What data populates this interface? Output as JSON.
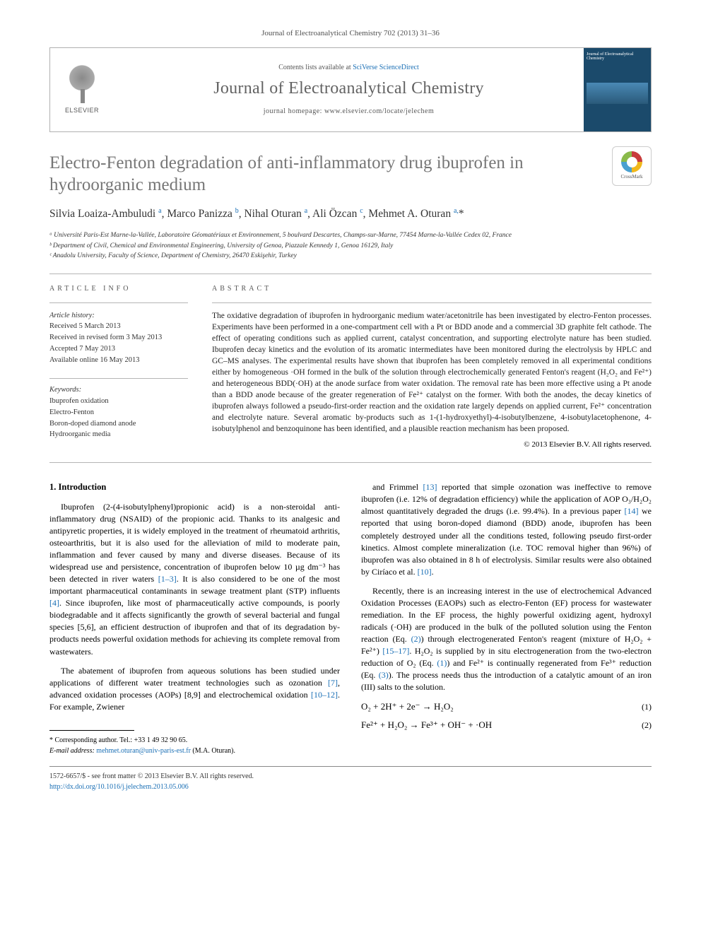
{
  "colors": {
    "link": "#1a6fb5",
    "title_gray": "#767676",
    "body": "#000000",
    "rule": "#b5b5b5",
    "cover_bg": "#1b4a6b"
  },
  "typography": {
    "body_family": "Georgia, 'Times New Roman', serif",
    "title_pt": 25,
    "journal_pt": 24,
    "abstract_pt": 11.5,
    "body_pt": 12
  },
  "header": {
    "journal_ref": "Journal of Electroanalytical Chemistry 702 (2013) 31–36",
    "contents_prefix": "Contents lists available at ",
    "contents_link": "SciVerse ScienceDirect",
    "journal_title": "Journal of Electroanalytical Chemistry",
    "homepage": "journal homepage: www.elsevier.com/locate/jelechem",
    "publisher": "ELSEVIER",
    "cover_small": "Journal of Electroanalytical Chemistry",
    "crossmark": "CrossMark"
  },
  "article": {
    "title": "Electro-Fenton degradation of anti-inflammatory drug ibuprofen in hydroorganic medium",
    "authors_html": "Silvia Loaiza-Ambuludi <sup class='sup-link'>a</sup>, Marco Panizza <sup class='sup-link'>b</sup>, Nihal Oturan <sup class='sup-link'>a</sup>, Ali Özcan <sup class='sup-link'>c</sup>, Mehmet A. Oturan <sup class='sup-link'>a,</sup>*",
    "affiliations": [
      "ᵃ Université Paris-Est Marne-la-Vallée, Laboratoire Géomatériaux et Environnement, 5 boulvard Descartes, Champs-sur-Marne, 77454 Marne-la-Vallée Cedex 02, France",
      "ᵇ Department of Civil, Chemical and Environmental Engineering, University of Genoa, Piazzale Kennedy 1, Genoa 16129, Italy",
      "ᶜ Anadolu University, Faculty of Science, Department of Chemistry, 26470 Eskişehir, Turkey"
    ]
  },
  "info": {
    "head": "ARTICLE INFO",
    "history_label": "Article history:",
    "history": [
      "Received 5 March 2013",
      "Received in revised form 3 May 2013",
      "Accepted 7 May 2013",
      "Available online 16 May 2013"
    ],
    "keywords_label": "Keywords:",
    "keywords": [
      "Ibuprofen oxidation",
      "Electro-Fenton",
      "Boron-doped diamond anode",
      "Hydroorganic media"
    ]
  },
  "abstract": {
    "head": "ABSTRACT",
    "text": "The oxidative degradation of ibuprofen in hydroorganic medium water/acetonitrile has been investigated by electro-Fenton processes. Experiments have been performed in a one-compartment cell with a Pt or BDD anode and a commercial 3D graphite felt cathode. The effect of operating conditions such as applied current, catalyst concentration, and supporting electrolyte nature has been studied. Ibuprofen decay kinetics and the evolution of its aromatic intermediates have been monitored during the electrolysis by HPLC and GC–MS analyses. The experimental results have shown that ibuprofen has been completely removed in all experimental conditions either by homogeneous ·OH formed in the bulk of the solution through electrochemically generated Fenton's reagent (H₂O₂ and Fe²⁺) and heterogeneous BDD(·OH) at the anode surface from water oxidation. The removal rate has been more effective using a Pt anode than a BDD anode because of the greater regeneration of Fe²⁺ catalyst on the former. With both the anodes, the decay kinetics of ibuprofen always followed a pseudo-first-order reaction and the oxidation rate largely depends on applied current, Fe²⁺ concentration and electrolyte nature. Several aromatic by-products such as 1-(1-hydroxyethyl)-4-isobutylbenzene, 4-isobutylacetophenone, 4-isobutylphenol and benzoquinone has been identified, and a plausible reaction mechanism has been proposed.",
    "copyright": "© 2013 Elsevier B.V. All rights reserved."
  },
  "body": {
    "section_num": "1.",
    "section_title": "Introduction",
    "left": [
      "Ibuprofen (2-(4-isobutylphenyl)propionic acid) is a non-steroidal anti-inflammatory drug (NSAID) of the propionic acid. Thanks to its analgesic and antipyretic properties, it is widely employed in the treatment of rheumatoid arthritis, osteoarthritis, but it is also used for the alleviation of mild to moderate pain, inflammation and fever caused by many and diverse diseases. Because of its widespread use and persistence, concentration of ibuprofen below 10 µg dm⁻³ has been detected in river waters [1–3]. It is also considered to be one of the most important pharmaceutical contaminants in sewage treatment plant (STP) influents [4]. Since ibuprofen, like most of pharmaceutically active compounds, is poorly biodegradable and it affects significantly the growth of several bacterial and fungal species [5,6], an efficient destruction of ibuprofen and that of its degradation by-products needs powerful oxidation methods for achieving its complete removal from wastewaters.",
      "The abatement of ibuprofen from aqueous solutions has been studied under applications of different water treatment technologies such as ozonation [7], advanced oxidation processes (AOPs) [8,9] and electrochemical oxidation [10–12]. For example, Zwiener"
    ],
    "right": [
      "and Frimmel [13] reported that simple ozonation was ineffective to remove ibuprofen (i.e. 12% of degradation efficiency) while the application of AOP O₃/H₂O₂ almost quantitatively degraded the drugs (i.e. 99.4%). In a previous paper [14] we reported that using boron-doped diamond (BDD) anode, ibuprofen has been completely destroyed under all the conditions tested, following pseudo first-order kinetics. Almost complete mineralization (i.e. TOC removal higher than 96%) of ibuprofen was also obtained in 8 h of electrolysis. Similar results were also obtained by Ciríaco et al. [10].",
      "Recently, there is an increasing interest in the use of electrochemical Advanced Oxidation Processes (EAOPs) such as electro-Fenton (EF) process for wastewater remediation. In the EF process, the highly powerful oxidizing agent, hydroxyl radicals (·OH) are produced in the bulk of the polluted solution using the Fenton reaction (Eq. (2)) through electrogenerated Fenton's reagent (mixture of H₂O₂ + Fe²⁺) [15–17]. H₂O₂ is supplied by in situ electrogeneration from the two-electron reduction of O₂ (Eq. (1)) and Fe²⁺ is continually regenerated from Fe³⁺ reduction (Eq. (3)). The process needs thus the introduction of a catalytic amount of an iron (III) salts to the solution."
    ],
    "equations": [
      {
        "eq": "O₂ + 2H⁺ + 2e⁻ → H₂O₂",
        "num": "(1)"
      },
      {
        "eq": "Fe²⁺ + H₂O₂ → Fe³⁺ + OH⁻ + ·OH",
        "num": "(2)"
      }
    ]
  },
  "footer": {
    "corresponding": "* Corresponding author. Tel.: +33 1 49 32 90 65.",
    "email_label": "E-mail address:",
    "email": "mehmet.oturan@univ-paris-est.fr",
    "email_person": "(M.A. Oturan).",
    "meta1": "1572-6657/$ - see front matter © 2013 Elsevier B.V. All rights reserved.",
    "doi": "http://dx.doi.org/10.1016/j.jelechem.2013.05.006"
  }
}
